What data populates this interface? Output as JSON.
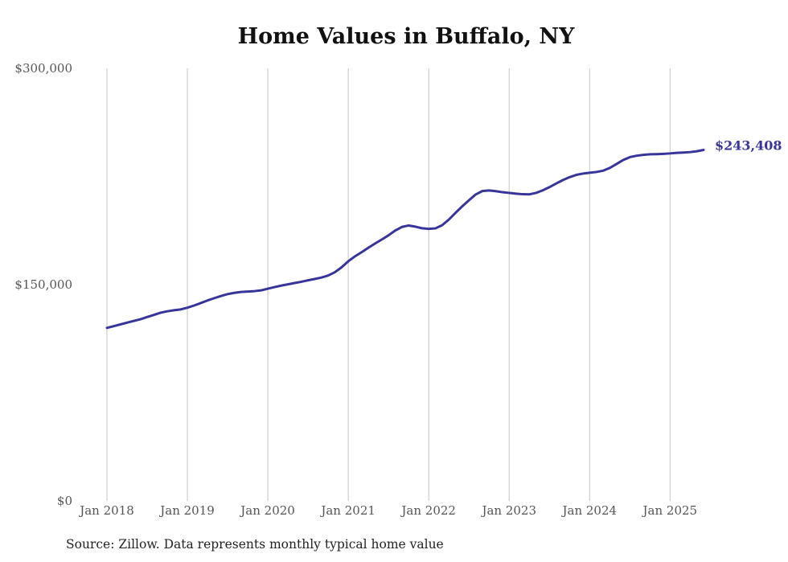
{
  "chart_data": {
    "type": "line",
    "title": "Home Values in Buffalo, NY",
    "xlabel": "",
    "ylabel": "",
    "ylim": [
      0,
      300000
    ],
    "xlim": [
      "2018-01",
      "2025-06"
    ],
    "y_ticks": [
      0,
      150000,
      300000
    ],
    "y_tick_labels": [
      "$0",
      "$150,000",
      "$300,000"
    ],
    "x_ticks": [
      "2018-01",
      "2019-01",
      "2020-01",
      "2021-01",
      "2022-01",
      "2023-01",
      "2024-01",
      "2025-01"
    ],
    "x_tick_labels": [
      "Jan 2018",
      "Jan 2019",
      "Jan 2020",
      "Jan 2021",
      "Jan 2022",
      "Jan 2023",
      "Jan 2024",
      "Jan 2025"
    ],
    "grid": "vertical",
    "line_color": "#37359a",
    "end_label": "$243,408",
    "series": [
      {
        "x": [
          "2018-01",
          "2018-02",
          "2018-03",
          "2018-04",
          "2018-05",
          "2018-06",
          "2018-07",
          "2018-08",
          "2018-09",
          "2018-10",
          "2018-11",
          "2018-12",
          "2019-01",
          "2019-02",
          "2019-03",
          "2019-04",
          "2019-05",
          "2019-06",
          "2019-07",
          "2019-08",
          "2019-09",
          "2019-10",
          "2019-11",
          "2019-12",
          "2020-01",
          "2020-02",
          "2020-03",
          "2020-04",
          "2020-05",
          "2020-06",
          "2020-07",
          "2020-08",
          "2020-09",
          "2020-10",
          "2020-11",
          "2020-12",
          "2021-01",
          "2021-02",
          "2021-03",
          "2021-04",
          "2021-05",
          "2021-06",
          "2021-07",
          "2021-08",
          "2021-09",
          "2021-10",
          "2021-11",
          "2021-12",
          "2022-01",
          "2022-02",
          "2022-03",
          "2022-04",
          "2022-05",
          "2022-06",
          "2022-07",
          "2022-08",
          "2022-09",
          "2022-10",
          "2022-11",
          "2022-12",
          "2023-01",
          "2023-02",
          "2023-03",
          "2023-04",
          "2023-05",
          "2023-06",
          "2023-07",
          "2023-08",
          "2023-09",
          "2023-10",
          "2023-11",
          "2023-12",
          "2024-01",
          "2024-02",
          "2024-03",
          "2024-04",
          "2024-05",
          "2024-06",
          "2024-07",
          "2024-08",
          "2024-09",
          "2024-10",
          "2024-11",
          "2024-12",
          "2025-01",
          "2025-02",
          "2025-03",
          "2025-04",
          "2025-05",
          "2025-06"
        ],
        "values": [
          120000,
          121200,
          122400,
          123600,
          124800,
          126000,
          127500,
          129000,
          130500,
          131500,
          132200,
          132800,
          134000,
          135500,
          137200,
          139000,
          140600,
          142100,
          143400,
          144300,
          144900,
          145200,
          145500,
          146000,
          147200,
          148300,
          149300,
          150200,
          151100,
          152000,
          153000,
          153900,
          154900,
          156300,
          158600,
          162000,
          166200,
          169600,
          172500,
          175600,
          178500,
          181300,
          184200,
          187500,
          190000,
          191000,
          190200,
          189100,
          188700,
          189000,
          191200,
          195100,
          199800,
          204300,
          208500,
          212500,
          214900,
          215300,
          214800,
          214100,
          213600,
          213100,
          212700,
          212600,
          213600,
          215400,
          217600,
          220100,
          222500,
          224500,
          226100,
          227000,
          227600,
          228100,
          229000,
          230900,
          233600,
          236400,
          238400,
          239400,
          240000,
          240400,
          240500,
          240700,
          241000,
          241400,
          241600,
          241900,
          242500,
          243408
        ]
      }
    ]
  },
  "source_note": "Source: Zillow. Data represents monthly typical home value"
}
